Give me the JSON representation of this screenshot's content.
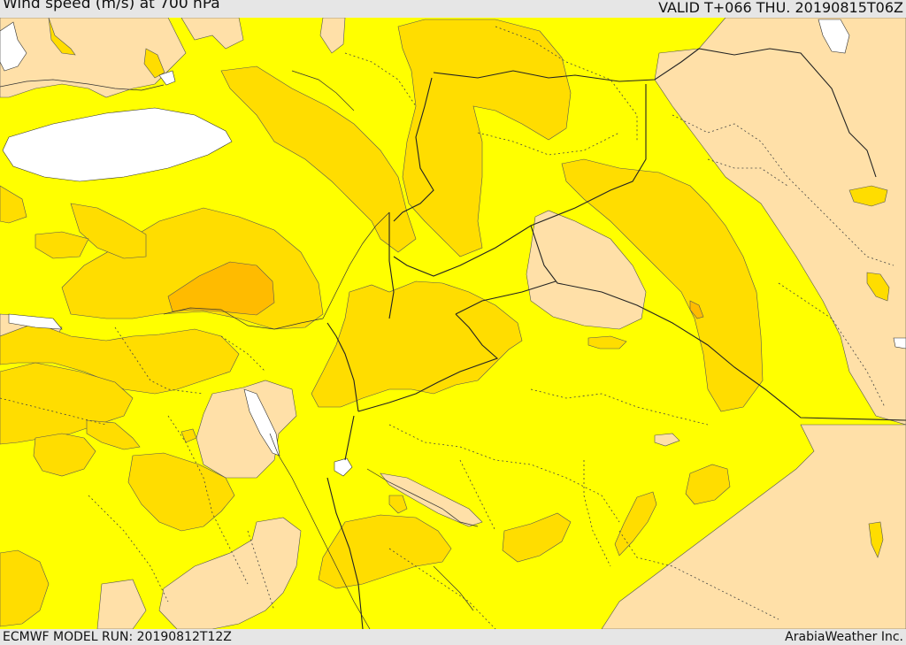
{
  "header": {
    "title": "Wind speed (m/s) at 700 hPa",
    "valid": "VALID T+066 THU. 20190815T06Z"
  },
  "footer": {
    "model_run": "ECMWF MODEL RUN: 20190812T12Z",
    "credit": "ArabiaWeather Inc."
  },
  "colors": {
    "background": "#ffff00",
    "low_wind": "#ffe0a8",
    "mid_wind": "#ffdd00",
    "high_wind": "#ffbb00",
    "water": "#ffffff",
    "borders": "#222222",
    "admin_lines": "#333333"
  }
}
